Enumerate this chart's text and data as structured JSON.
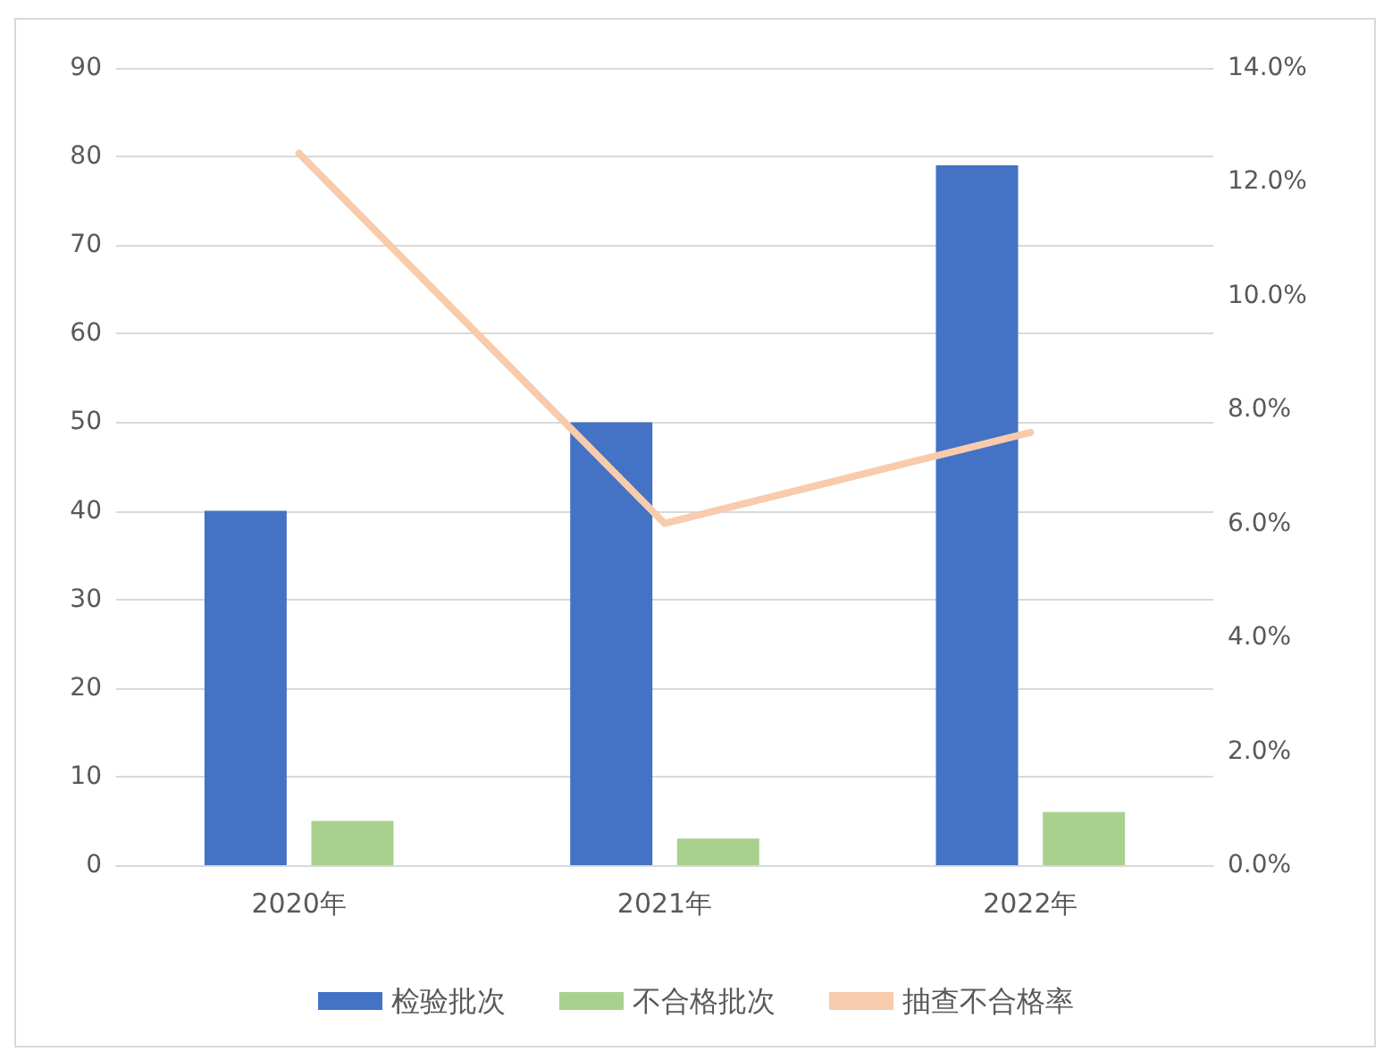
{
  "chart_data": {
    "type": "bar",
    "categories": [
      "2020年",
      "2021年",
      "2022年"
    ],
    "series": [
      {
        "name": "检验批次",
        "color": "#4472c4",
        "values": [
          40,
          50,
          79
        ]
      },
      {
        "name": "不合格批次",
        "color": "#a9d18e",
        "values": [
          5,
          3,
          6
        ]
      },
      {
        "name": "抽查不合格率",
        "type": "line",
        "axis": "y2",
        "color": "#f8cbad",
        "values": [
          12.5,
          6.0,
          7.6
        ]
      }
    ],
    "ylim": [
      0,
      90
    ],
    "yticks": [
      0,
      10,
      20,
      30,
      40,
      50,
      60,
      70,
      80,
      90
    ],
    "y2lim": [
      0,
      14
    ],
    "y2ticks": [
      {
        "value": 0,
        "label": "0.0%"
      },
      {
        "value": 2,
        "label": "2.0%"
      },
      {
        "value": 4,
        "label": "4.0%"
      },
      {
        "value": 6,
        "label": "6.0%"
      },
      {
        "value": 8,
        "label": "8.0%"
      },
      {
        "value": 10,
        "label": "10.0%"
      },
      {
        "value": 12,
        "label": "12.0%"
      },
      {
        "value": 14,
        "label": "14.0%"
      }
    ],
    "grid": "y",
    "legend": "bottom",
    "marker": "none"
  }
}
